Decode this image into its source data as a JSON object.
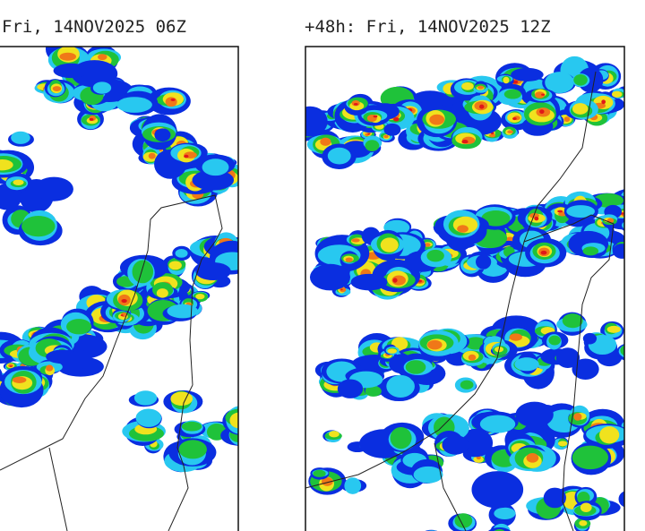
{
  "panels": [
    {
      "title": "Fri, 14NOV2025 06Z"
    },
    {
      "title": "+48h: Fri, 14NOV2025 12Z"
    }
  ]
}
